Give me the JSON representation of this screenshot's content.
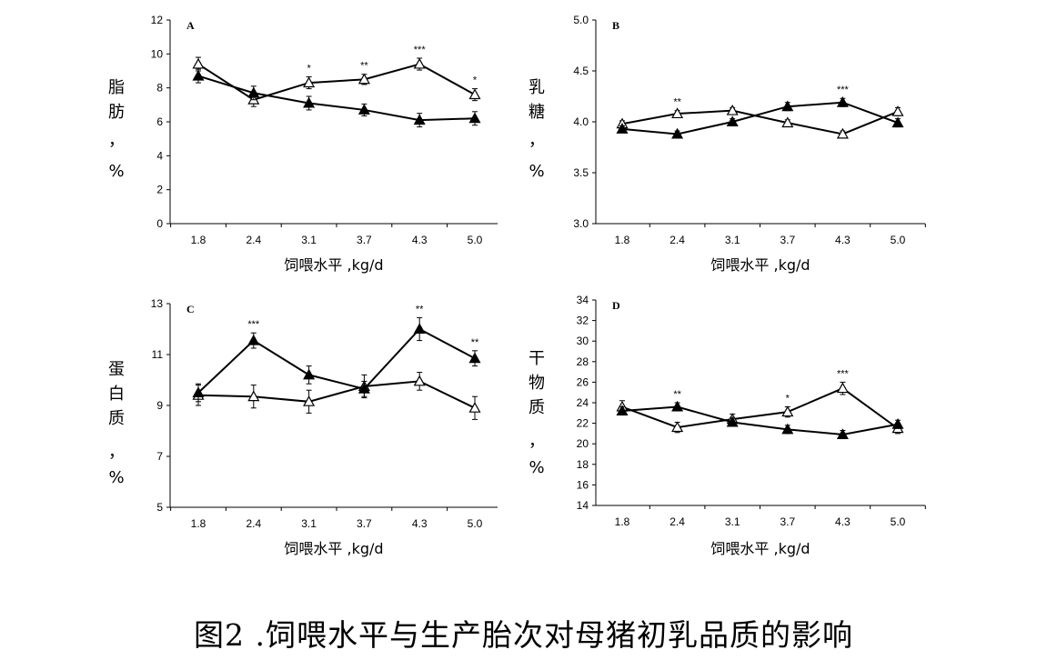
{
  "caption": "图2 .饲喂水平与生产胎次对母猪初乳品质的影响",
  "chart_data": [
    {
      "type": "line",
      "panel_label": "A",
      "ylabel_chars": [
        "脂",
        "肪",
        "，",
        "%"
      ],
      "xlabel": "饲喂水平 ,kg/d",
      "categories": [
        "1.8",
        "2.4",
        "3.1",
        "3.7",
        "4.3",
        "5.0"
      ],
      "ylim": [
        0,
        12
      ],
      "yticks": [
        "0",
        "2",
        "4",
        "6",
        "8",
        "10",
        "12"
      ],
      "series": [
        {
          "name": "open-triangle",
          "marker": "open",
          "values": [
            9.4,
            7.3,
            8.3,
            8.5,
            9.4,
            7.6
          ],
          "errors": [
            0.4,
            0.4,
            0.35,
            0.3,
            0.35,
            0.35
          ]
        },
        {
          "name": "filled-triangle",
          "marker": "filled",
          "values": [
            8.7,
            7.7,
            7.1,
            6.7,
            6.1,
            6.2
          ],
          "errors": [
            0.4,
            0.4,
            0.4,
            0.35,
            0.4,
            0.4
          ]
        }
      ],
      "significance": [
        {
          "index": 2,
          "label": "*"
        },
        {
          "index": 3,
          "label": "**"
        },
        {
          "index": 4,
          "label": "***"
        },
        {
          "index": 5,
          "label": "*"
        }
      ]
    },
    {
      "type": "line",
      "panel_label": "B",
      "ylabel_chars": [
        "乳",
        "糖",
        "，",
        "%"
      ],
      "xlabel": "饲喂水平 ,kg/d",
      "categories": [
        "1.8",
        "2.4",
        "3.1",
        "3.7",
        "4.3",
        "5.0"
      ],
      "ylim": [
        3.0,
        5.0
      ],
      "yticks": [
        "3.0",
        "3.5",
        "4.0",
        "4.5",
        "5.0"
      ],
      "series": [
        {
          "name": "open-triangle",
          "marker": "open",
          "values": [
            3.98,
            4.08,
            4.11,
            3.99,
            3.88,
            4.1
          ],
          "errors": [
            0.03,
            0.03,
            0.03,
            0.03,
            0.03,
            0.04
          ]
        },
        {
          "name": "filled-triangle",
          "marker": "filled",
          "values": [
            3.93,
            3.88,
            4.0,
            4.15,
            4.19,
            3.99
          ],
          "errors": [
            0.03,
            0.03,
            0.03,
            0.04,
            0.04,
            0.04
          ]
        }
      ],
      "significance": [
        {
          "index": 1,
          "label": "**"
        },
        {
          "index": 4,
          "label": "***"
        }
      ]
    },
    {
      "type": "line",
      "panel_label": "C",
      "ylabel_chars": [
        "蛋",
        "白",
        "质",
        "，",
        "%"
      ],
      "xlabel": "饲喂水平 ,kg/d",
      "categories": [
        "1.8",
        "2.4",
        "3.1",
        "3.7",
        "4.3",
        "5.0"
      ],
      "ylim": [
        5,
        13
      ],
      "yticks": [
        "5",
        "7",
        "9",
        "11",
        "13"
      ],
      "series": [
        {
          "name": "open-triangle",
          "marker": "open",
          "values": [
            9.4,
            9.35,
            9.15,
            9.75,
            9.95,
            8.9
          ],
          "errors": [
            0.4,
            0.45,
            0.45,
            0.45,
            0.35,
            0.45
          ]
        },
        {
          "name": "filled-triangle",
          "marker": "filled",
          "values": [
            9.5,
            11.55,
            10.2,
            9.65,
            12.0,
            10.85
          ],
          "errors": [
            0.35,
            0.3,
            0.35,
            0.3,
            0.45,
            0.3
          ]
        }
      ],
      "significance": [
        {
          "index": 1,
          "label": "***"
        },
        {
          "index": 4,
          "label": "**"
        },
        {
          "index": 5,
          "label": "**"
        }
      ]
    },
    {
      "type": "line",
      "panel_label": "D",
      "ylabel_chars": [
        "干",
        "物",
        "质",
        "，",
        "%"
      ],
      "xlabel": "饲喂水平 ,kg/d",
      "categories": [
        "1.8",
        "2.4",
        "3.1",
        "3.7",
        "4.3",
        "5.0"
      ],
      "ylim": [
        14,
        34
      ],
      "yticks": [
        "14",
        "16",
        "18",
        "20",
        "22",
        "24",
        "26",
        "28",
        "30",
        "32",
        "34"
      ],
      "series": [
        {
          "name": "open-triangle",
          "marker": "open",
          "values": [
            23.6,
            21.6,
            22.4,
            23.1,
            25.4,
            21.5
          ],
          "errors": [
            0.6,
            0.5,
            0.5,
            0.5,
            0.6,
            0.5
          ]
        },
        {
          "name": "filled-triangle",
          "marker": "filled",
          "values": [
            23.2,
            23.6,
            22.1,
            21.4,
            20.9,
            21.9
          ],
          "errors": [
            0.4,
            0.4,
            0.4,
            0.4,
            0.4,
            0.4
          ]
        }
      ],
      "significance": [
        {
          "index": 1,
          "label": "**"
        },
        {
          "index": 3,
          "label": "*"
        },
        {
          "index": 4,
          "label": "***"
        }
      ]
    }
  ]
}
